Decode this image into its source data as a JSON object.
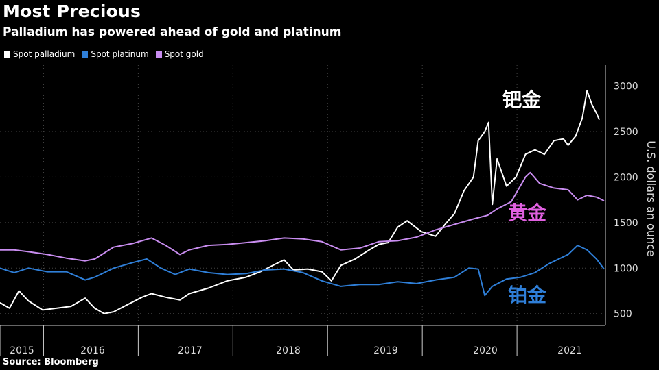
{
  "title": "Most Precious",
  "subtitle": "Palladium has powered ahead of gold and platinum",
  "source": "Source: Bloomberg",
  "colors": {
    "palladium": "#ffffff",
    "platinum": "#2f7fd8",
    "gold": "#c98df0",
    "grid": "#555555",
    "axis": "#cccccc"
  },
  "chart_data": {
    "type": "line",
    "title": "Most Precious",
    "subtitle": "Palladium has powered ahead of gold and platinum",
    "ylabel": "U.S. dollars an ounce",
    "ylim": [
      370,
      3230
    ],
    "xlim": [
      2015.0,
      2021.38
    ],
    "y_ticks": [
      500,
      1000,
      1500,
      2000,
      2500,
      3000
    ],
    "x_tick_labels": [
      "2015",
      "2016",
      "2017",
      "2018",
      "2019",
      "2020",
      "2021"
    ],
    "legend_position": "top-left",
    "grid": true,
    "annotations": [
      {
        "text": "钯金",
        "series": "Spot palladium",
        "color": "#ffffff"
      },
      {
        "text": "黄金",
        "series": "Spot gold",
        "color": "#e060e0"
      },
      {
        "text": "铂金",
        "series": "Spot platinum",
        "color": "#2f7fd8"
      }
    ],
    "series": [
      {
        "name": "Spot palladium",
        "color": "#ffffff",
        "x": [
          2015.0,
          2015.1,
          2015.2,
          2015.3,
          2015.45,
          2015.6,
          2015.75,
          2015.9,
          2016.0,
          2016.1,
          2016.2,
          2016.35,
          2016.5,
          2016.6,
          2016.75,
          2016.9,
          2017.0,
          2017.2,
          2017.4,
          2017.6,
          2017.75,
          2017.9,
          2018.0,
          2018.1,
          2018.25,
          2018.4,
          2018.5,
          2018.6,
          2018.75,
          2018.9,
          2019.0,
          2019.1,
          2019.2,
          2019.3,
          2019.45,
          2019.6,
          2019.7,
          2019.8,
          2019.9,
          2020.0,
          2020.05,
          2020.12,
          2020.16,
          2020.2,
          2020.25,
          2020.35,
          2020.45,
          2020.55,
          2020.65,
          2020.75,
          2020.85,
          2020.95,
          2021.0,
          2021.08,
          2021.15,
          2021.2,
          2021.25,
          2021.3,
          2021.33
        ],
        "values": [
          620,
          560,
          750,
          640,
          540,
          560,
          580,
          670,
          560,
          500,
          520,
          600,
          680,
          720,
          680,
          650,
          720,
          780,
          860,
          900,
          960,
          1040,
          1090,
          980,
          990,
          960,
          860,
          1030,
          1100,
          1200,
          1260,
          1280,
          1450,
          1520,
          1400,
          1350,
          1480,
          1600,
          1850,
          2000,
          2400,
          2500,
          2600,
          1700,
          2200,
          1900,
          2000,
          2250,
          2300,
          2250,
          2400,
          2420,
          2350,
          2450,
          2650,
          2950,
          2800,
          2700,
          2630
        ]
      },
      {
        "name": "Spot platinum",
        "color": "#2f7fd8",
        "x": [
          2015.0,
          2015.15,
          2015.3,
          2015.5,
          2015.7,
          2015.9,
          2016.0,
          2016.2,
          2016.4,
          2016.55,
          2016.7,
          2016.85,
          2017.0,
          2017.2,
          2017.4,
          2017.6,
          2017.8,
          2018.0,
          2018.2,
          2018.4,
          2018.6,
          2018.8,
          2019.0,
          2019.2,
          2019.4,
          2019.6,
          2019.8,
          2019.95,
          2020.05,
          2020.12,
          2020.2,
          2020.35,
          2020.5,
          2020.65,
          2020.8,
          2021.0,
          2021.1,
          2021.2,
          2021.3,
          2021.38
        ],
        "values": [
          1000,
          950,
          1000,
          960,
          960,
          870,
          900,
          1000,
          1060,
          1100,
          1000,
          930,
          990,
          950,
          930,
          940,
          980,
          990,
          950,
          860,
          800,
          820,
          820,
          850,
          830,
          870,
          900,
          1000,
          990,
          700,
          800,
          880,
          900,
          950,
          1050,
          1150,
          1250,
          1200,
          1100,
          990
        ]
      },
      {
        "name": "Spot gold",
        "color": "#c98df0",
        "x": [
          2015.0,
          2015.15,
          2015.3,
          2015.5,
          2015.7,
          2015.9,
          2016.0,
          2016.2,
          2016.4,
          2016.6,
          2016.75,
          2016.9,
          2017.0,
          2017.2,
          2017.4,
          2017.6,
          2017.8,
          2018.0,
          2018.2,
          2018.4,
          2018.6,
          2018.8,
          2019.0,
          2019.2,
          2019.4,
          2019.6,
          2019.8,
          2020.0,
          2020.15,
          2020.25,
          2020.4,
          2020.55,
          2020.6,
          2020.7,
          2020.85,
          2021.0,
          2021.1,
          2021.2,
          2021.3,
          2021.38
        ],
        "values": [
          1200,
          1200,
          1180,
          1150,
          1110,
          1080,
          1100,
          1230,
          1270,
          1330,
          1250,
          1150,
          1200,
          1250,
          1260,
          1280,
          1300,
          1330,
          1320,
          1290,
          1200,
          1220,
          1290,
          1300,
          1340,
          1420,
          1480,
          1540,
          1580,
          1650,
          1730,
          2000,
          2050,
          1930,
          1880,
          1860,
          1750,
          1800,
          1780,
          1740
        ]
      }
    ]
  }
}
